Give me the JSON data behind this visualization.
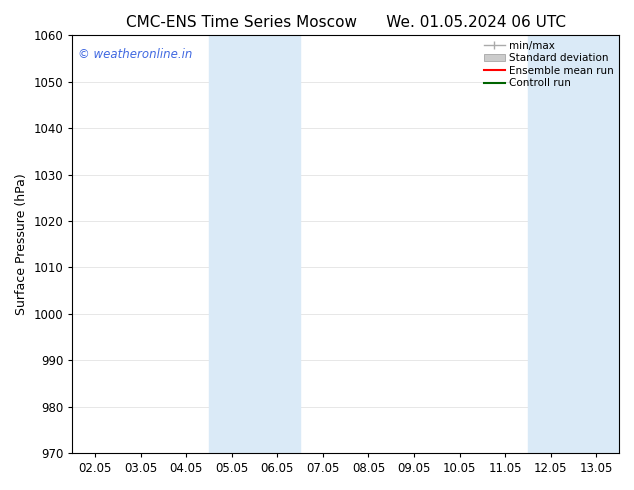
{
  "title_left": "CMC-ENS Time Series Moscow",
  "title_right": "We. 01.05.2024 06 UTC",
  "ylabel": "Surface Pressure (hPa)",
  "ylim": [
    970,
    1060
  ],
  "yticks": [
    970,
    980,
    990,
    1000,
    1010,
    1020,
    1030,
    1040,
    1050,
    1060
  ],
  "xtick_labels": [
    "02.05",
    "03.05",
    "04.05",
    "05.05",
    "06.05",
    "07.05",
    "08.05",
    "09.05",
    "10.05",
    "11.05",
    "12.05",
    "13.05"
  ],
  "shaded_bands": [
    {
      "x_start": 2.5,
      "x_end": 4.5
    },
    {
      "x_start": 9.5,
      "x_end": 11.5
    }
  ],
  "shade_color": "#daeaf7",
  "watermark_text": "© weatheronline.in",
  "watermark_color": "#4169e1",
  "legend_items": [
    {
      "label": "min/max",
      "color": "#aaaaaa",
      "lw": 1.2
    },
    {
      "label": "Standard deviation",
      "color": "#cccccc",
      "lw": 6
    },
    {
      "label": "Ensemble mean run",
      "color": "#ff0000",
      "lw": 1.5
    },
    {
      "label": "Controll run",
      "color": "#006400",
      "lw": 1.5
    }
  ],
  "background_color": "#ffffff",
  "font_family": "DejaVu Sans",
  "title_fontsize": 11,
  "axis_fontsize": 9,
  "tick_fontsize": 8.5,
  "grid_color": "#dddddd",
  "xlim": [
    -0.5,
    11.5
  ]
}
